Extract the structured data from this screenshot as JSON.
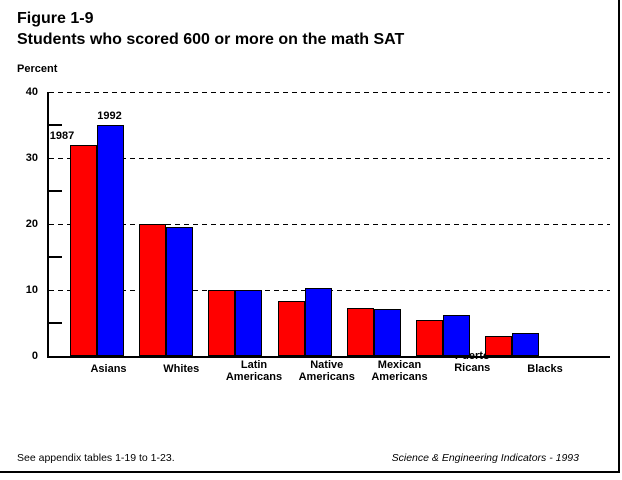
{
  "page": {
    "figure_label": "Figure 1-9",
    "title": "Students who scored 600 or more on the math SAT",
    "footnote": "See appendix tables 1-19 to 1-23.",
    "source": "Science & Engineering Indicators - 1993"
  },
  "chart_data": {
    "type": "bar",
    "title": "Students who scored 600 or more on the math SAT",
    "xlabel": "",
    "ylabel": "Percent",
    "ylim": [
      0,
      40
    ],
    "yticks_major": [
      0,
      10,
      20,
      30,
      40
    ],
    "yticks_minor": [
      5,
      15,
      25,
      35
    ],
    "grid": "horizontal dashed lines at major ticks",
    "legend_position": "series-name labels above first category's bars",
    "categories": [
      "Asians",
      "Whites",
      "Latin Americans",
      "Native Americans",
      "Mexican Americans",
      "Puerto Ricans",
      "Blacks"
    ],
    "category_label_lines": [
      [
        "Asians"
      ],
      [
        "Whites"
      ],
      [
        "Latin",
        "Americans"
      ],
      [
        "Native",
        "Americans"
      ],
      [
        "Mexican",
        "Americans"
      ],
      [
        "Puerto",
        "Ricans"
      ],
      [
        "Blacks"
      ]
    ],
    "series": [
      {
        "name": "1987",
        "color": "#ff0000",
        "values": [
          32,
          20,
          10,
          8.3,
          7.3,
          5.5,
          3.0
        ]
      },
      {
        "name": "1992",
        "color": "#0000ff",
        "values": [
          35,
          19.5,
          10,
          10.3,
          7.1,
          6.2,
          3.5
        ]
      }
    ]
  }
}
